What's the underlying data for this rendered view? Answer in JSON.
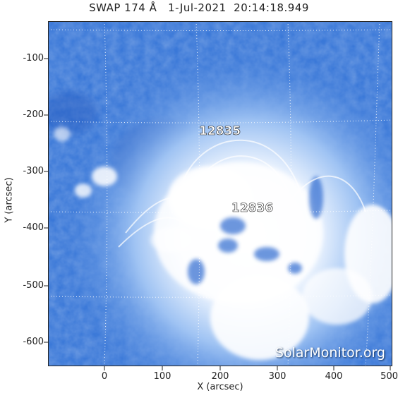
{
  "title": "SWAP 174 Å   1-Jul-2021  20:14:18.949",
  "axes": {
    "xlabel": "X (arcsec)",
    "ylabel": "Y (arcsec)",
    "xticks": [
      "0",
      "100",
      "200",
      "300",
      "400",
      "500"
    ],
    "yticks": [
      "-100",
      "-200",
      "-300",
      "-400",
      "-500",
      "-600"
    ]
  },
  "regions": [
    {
      "label": "12835"
    },
    {
      "label": "12836"
    }
  ],
  "watermark": "SolarMonitor.org",
  "colors": {
    "background_blue": "#3a78d8",
    "bright": "#ffffff",
    "dark_blue": "#1f55b8"
  }
}
